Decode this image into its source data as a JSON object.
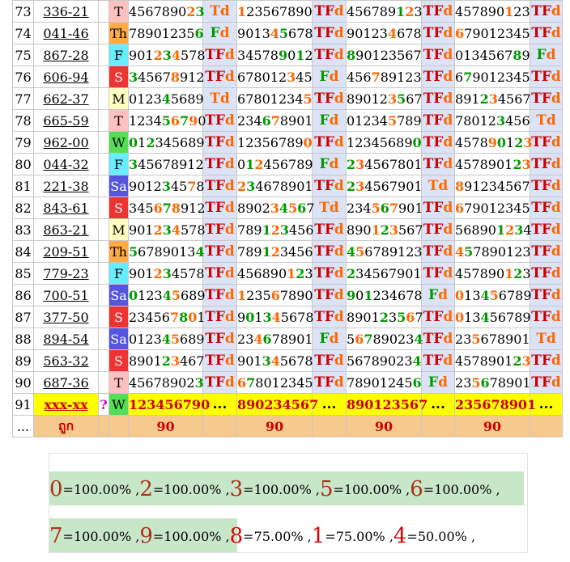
{
  "colors": {
    "weekday_bg": {
      "M": "#ffffc0",
      "T": "#ffc0c0",
      "W": "#55dd55",
      "Th": "#ffaa44",
      "F": "#66eeff",
      "Sa": "#5555dd",
      "S": "#ee3333"
    },
    "weekday_fg": {
      "M": "#000000",
      "T": "#000000",
      "W": "#000000",
      "Th": "#000000",
      "F": "#000000",
      "Sa": "#ffffff",
      "S": "#ffffff"
    },
    "digit_normal": "#000000",
    "digit_highlight": [
      "#009900",
      "#ff6600"
    ],
    "tag_colors": {
      "T": "#ff6600",
      "F": "#009900",
      "d": "#ff6600",
      "TF": "#cc0000"
    },
    "today_bg": "#ffff00",
    "footer_bg": "#f7c98d",
    "stat_red": "#cc0000"
  },
  "rows": [
    {
      "n": "73",
      "code": "336-21",
      "day": "T",
      "cols": [
        {
          "v": "456789023",
          "h": [
            7,
            8
          ],
          "t": "Td"
        },
        {
          "v": "123567890",
          "h": [
            0
          ],
          "t": "TFd"
        },
        {
          "v": "456789123",
          "h": [
            6,
            7
          ],
          "t": "TFd"
        },
        {
          "v": "457890123",
          "h": [
            6
          ],
          "t": "TFd"
        }
      ]
    },
    {
      "n": "74",
      "code": "041-46",
      "day": "Th",
      "cols": [
        {
          "v": "789012356",
          "h": [
            8
          ],
          "t": "Fd"
        },
        {
          "v": "901345678",
          "h": [
            4,
            5
          ],
          "t": "TFd"
        },
        {
          "v": "901234678",
          "h": [
            5
          ],
          "t": "TFd"
        },
        {
          "v": "679012345",
          "h": [
            0
          ],
          "t": "TFd"
        }
      ]
    },
    {
      "n": "75",
      "code": "867-28",
      "day": "F",
      "cols": [
        {
          "v": "901234578",
          "h": [
            3,
            4,
            5
          ],
          "t": "TFd"
        },
        {
          "v": "345789012",
          "h": [
            5,
            7
          ],
          "t": "TFd"
        },
        {
          "v": "890123567",
          "h": [
            0
          ],
          "t": "TFd"
        },
        {
          "v": "013456789",
          "h": [
            7
          ],
          "t": "Fd"
        }
      ]
    },
    {
      "n": "76",
      "code": "606-94",
      "day": "S",
      "cols": [
        {
          "v": "345678912",
          "h": [
            0,
            5
          ],
          "t": "TFd"
        },
        {
          "v": "678012345",
          "h": [
            6
          ],
          "t": "Fd"
        },
        {
          "v": "456789123",
          "h": [
            3
          ],
          "t": "TFd"
        },
        {
          "v": "679012345",
          "h": [
            1
          ],
          "t": "TFd"
        }
      ]
    },
    {
      "n": "77",
      "code": "662-37",
      "day": "M",
      "cols": [
        {
          "v": "012345689",
          "h": [
            4
          ],
          "t": "Td"
        },
        {
          "v": "678012345",
          "h": [
            8
          ],
          "t": "TFd"
        },
        {
          "v": "890123567",
          "h": [
            5,
            6
          ],
          "t": "TFd"
        },
        {
          "v": "891234567",
          "h": [
            3,
            4
          ],
          "t": "TFd"
        }
      ]
    },
    {
      "n": "78",
      "code": "665-59",
      "day": "T",
      "cols": [
        {
          "v": "123456790",
          "h": [
            4,
            5,
            6,
            7
          ],
          "t": "TFd"
        },
        {
          "v": "234678901",
          "h": [
            3,
            4
          ],
          "t": "Fd"
        },
        {
          "v": "012345789",
          "h": [
            5
          ],
          "t": "TFd"
        },
        {
          "v": "780123456",
          "h": [
            5
          ],
          "t": "Td"
        }
      ]
    },
    {
      "n": "79",
      "code": "962-00",
      "day": "W",
      "cols": [
        {
          "v": "012345689",
          "h": [
            0,
            2
          ],
          "t": "TFd"
        },
        {
          "v": "123567890",
          "h": [
            8
          ],
          "t": "TFd"
        },
        {
          "v": "123456890",
          "h": [
            8
          ],
          "t": "TFd"
        },
        {
          "v": "457890123",
          "h": [
            4,
            5,
            7,
            8
          ],
          "t": "TFd"
        }
      ]
    },
    {
      "n": "80",
      "code": "044-32",
      "day": "F",
      "cols": [
        {
          "v": "345678912",
          "h": [
            0
          ],
          "t": "TFd"
        },
        {
          "v": "012456789",
          "h": [
            1,
            2
          ],
          "t": "Fd"
        },
        {
          "v": "234567801",
          "h": [
            0,
            1
          ],
          "t": "TFd"
        },
        {
          "v": "457890123",
          "h": [
            7,
            8
          ],
          "t": "TFd"
        }
      ]
    },
    {
      "n": "81",
      "code": "221-38",
      "day": "Sa",
      "cols": [
        {
          "v": "901234578",
          "h": [
            4,
            7
          ],
          "t": "TFd"
        },
        {
          "v": "234678901",
          "h": [
            0,
            1
          ],
          "t": "TFd"
        },
        {
          "v": "234567901",
          "h": [
            0,
            1
          ],
          "t": "Td"
        },
        {
          "v": "891234567",
          "h": [
            0
          ],
          "t": "TFd"
        }
      ]
    },
    {
      "n": "82",
      "code": "843-61",
      "day": "S",
      "cols": [
        {
          "v": "345678912",
          "h": [
            3,
            4,
            5
          ],
          "t": "TFd"
        },
        {
          "v": "890234567",
          "h": [
            4,
            5,
            6,
            7
          ],
          "t": "Td"
        },
        {
          "v": "234567901",
          "h": [
            3,
            4,
            5
          ],
          "t": "TFd"
        },
        {
          "v": "679012345",
          "h": [
            0
          ],
          "t": "TFd"
        }
      ]
    },
    {
      "n": "83",
      "code": "863-21",
      "day": "M",
      "cols": [
        {
          "v": "901234578",
          "h": [
            3,
            4,
            5
          ],
          "t": "TFd"
        },
        {
          "v": "789123456",
          "h": [
            3,
            4,
            5
          ],
          "t": "TFd"
        },
        {
          "v": "890123567",
          "h": [
            3,
            4,
            5
          ],
          "t": "TFd"
        },
        {
          "v": "568901234",
          "h": [
            5,
            6,
            7
          ],
          "t": "TFd"
        }
      ]
    },
    {
      "n": "84",
      "code": "209-51",
      "day": "Th",
      "cols": [
        {
          "v": "567890134",
          "h": [
            0,
            8
          ],
          "t": "TFd"
        },
        {
          "v": "789123456",
          "h": [
            3,
            4
          ],
          "t": "TFd"
        },
        {
          "v": "456789123",
          "h": [
            0,
            1
          ],
          "t": "TFd"
        },
        {
          "v": "457890123",
          "h": [
            0,
            1
          ],
          "t": "TFd"
        }
      ]
    },
    {
      "n": "85",
      "code": "779-23",
      "day": "F",
      "cols": [
        {
          "v": "901234578",
          "h": [
            3,
            4
          ],
          "t": "TFd"
        },
        {
          "v": "456890123",
          "h": [
            6,
            7
          ],
          "t": "TFd"
        },
        {
          "v": "234567901",
          "h": [
            0
          ],
          "t": "TFd"
        },
        {
          "v": "457890123",
          "h": [
            6,
            7
          ],
          "t": "TFd"
        }
      ]
    },
    {
      "n": "86",
      "code": "700-51",
      "day": "Sa",
      "cols": [
        {
          "v": "012345689",
          "h": [
            0,
            4,
            5
          ],
          "t": "TFd"
        },
        {
          "v": "123567890",
          "h": [
            0,
            4
          ],
          "t": "TFd"
        },
        {
          "v": "901234678",
          "h": [
            0,
            2
          ],
          "t": "Fd"
        },
        {
          "v": "013456789",
          "h": [
            0,
            3,
            4
          ],
          "t": "TFd"
        }
      ]
    },
    {
      "n": "87",
      "code": "377-50",
      "day": "S",
      "cols": [
        {
          "v": "234567801",
          "h": [
            5,
            6,
            7
          ],
          "t": "TFd"
        },
        {
          "v": "901345678",
          "h": [
            1,
            3,
            4
          ],
          "t": "TFd"
        },
        {
          "v": "890123567",
          "h": [
            4,
            6,
            7
          ],
          "t": "TFd"
        },
        {
          "v": "013456789",
          "h": [
            0,
            3
          ],
          "t": "TFd"
        }
      ]
    },
    {
      "n": "88",
      "code": "894-54",
      "day": "Sa",
      "cols": [
        {
          "v": "012345689",
          "h": [
            4,
            5
          ],
          "t": "TFd"
        },
        {
          "v": "234678901",
          "h": [
            2,
            3
          ],
          "t": "Fd"
        },
        {
          "v": "567890234",
          "h": [
            1,
            2,
            8
          ],
          "t": "TFd"
        },
        {
          "v": "235678901",
          "h": [
            2
          ],
          "t": "Td"
        }
      ]
    },
    {
      "n": "89",
      "code": "563-32",
      "day": "S",
      "cols": [
        {
          "v": "890123467",
          "h": [
            4,
            5
          ],
          "t": "TFd"
        },
        {
          "v": "901345678",
          "h": [
            3,
            4
          ],
          "t": "TFd"
        },
        {
          "v": "567890234",
          "h": [
            8
          ],
          "t": "TFd"
        },
        {
          "v": "457890123",
          "h": [
            7,
            8
          ],
          "t": "TFd"
        }
      ]
    },
    {
      "n": "90",
      "code": "687-36",
      "day": "T",
      "cols": [
        {
          "v": "456789023",
          "h": [
            8
          ],
          "t": "TFd"
        },
        {
          "v": "678012345",
          "h": [
            0,
            1
          ],
          "t": "TFd"
        },
        {
          "v": "789012456",
          "h": [
            8
          ],
          "t": "Fd"
        },
        {
          "v": "235678901",
          "h": [
            2,
            3
          ],
          "t": "TFd"
        }
      ]
    }
  ],
  "today": {
    "n": "91",
    "code": "xxx-xx",
    "q": "?",
    "day": "W",
    "cols": [
      "123456790",
      "890234567",
      "890123567",
      "235678901"
    ],
    "dots": "..."
  },
  "footer": {
    "first": "...",
    "label": "ถูก",
    "counts": [
      "90",
      "90",
      "90",
      "90"
    ]
  },
  "stats": [
    {
      "d": "0",
      "p": "=100.00% ,",
      "full": true
    },
    {
      "d": "2",
      "p": "=100.00% ,",
      "full": true
    },
    {
      "d": "3",
      "p": "=100.00% ,",
      "full": true
    },
    {
      "d": "5",
      "p": "=100.00% ,",
      "full": true
    },
    {
      "d": "6",
      "p": "=100.00% ,",
      "full": true
    },
    {
      "d": "7",
      "p": "=100.00% ,",
      "full": true
    },
    {
      "d": "9",
      "p": "=100.00% ,",
      "full": true
    },
    {
      "d": "8",
      "p": "=75.00% ,",
      "full": false
    },
    {
      "d": "1",
      "p": "=75.00% ,",
      "full": false
    },
    {
      "d": "4",
      "p": "=50.00% ,",
      "full": false
    }
  ]
}
